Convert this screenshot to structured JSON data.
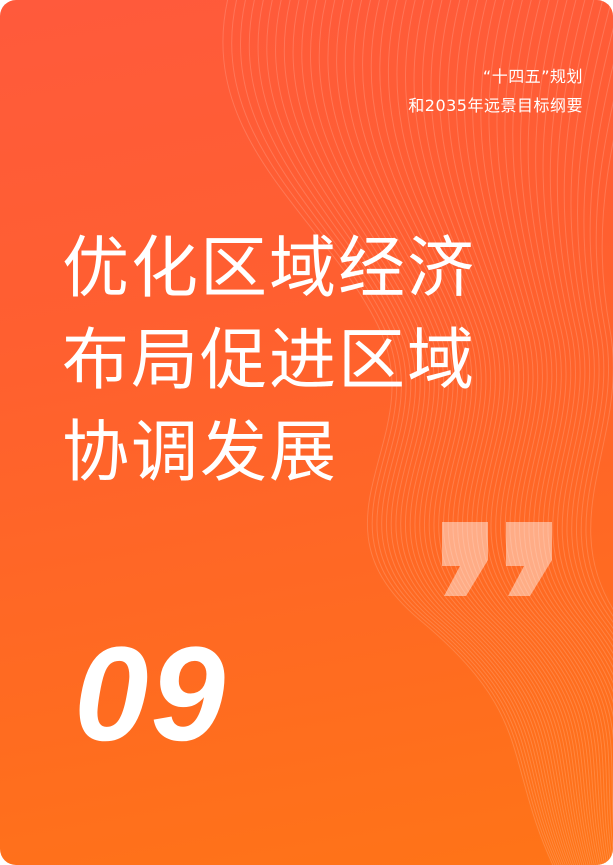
{
  "card": {
    "subtitle_lines": [
      "“十四五”规划",
      "和2035年远景目标纲要"
    ],
    "title_lines": [
      "优化区域经济",
      "布局促进区域",
      "协调发展"
    ],
    "number": "09",
    "icons": [
      "closing-quote-icon",
      "wave-lines-background"
    ],
    "colors": {
      "background_top": "#ff5a3c",
      "background_bottom": "#ff7417",
      "text": "#ffffff"
    }
  }
}
